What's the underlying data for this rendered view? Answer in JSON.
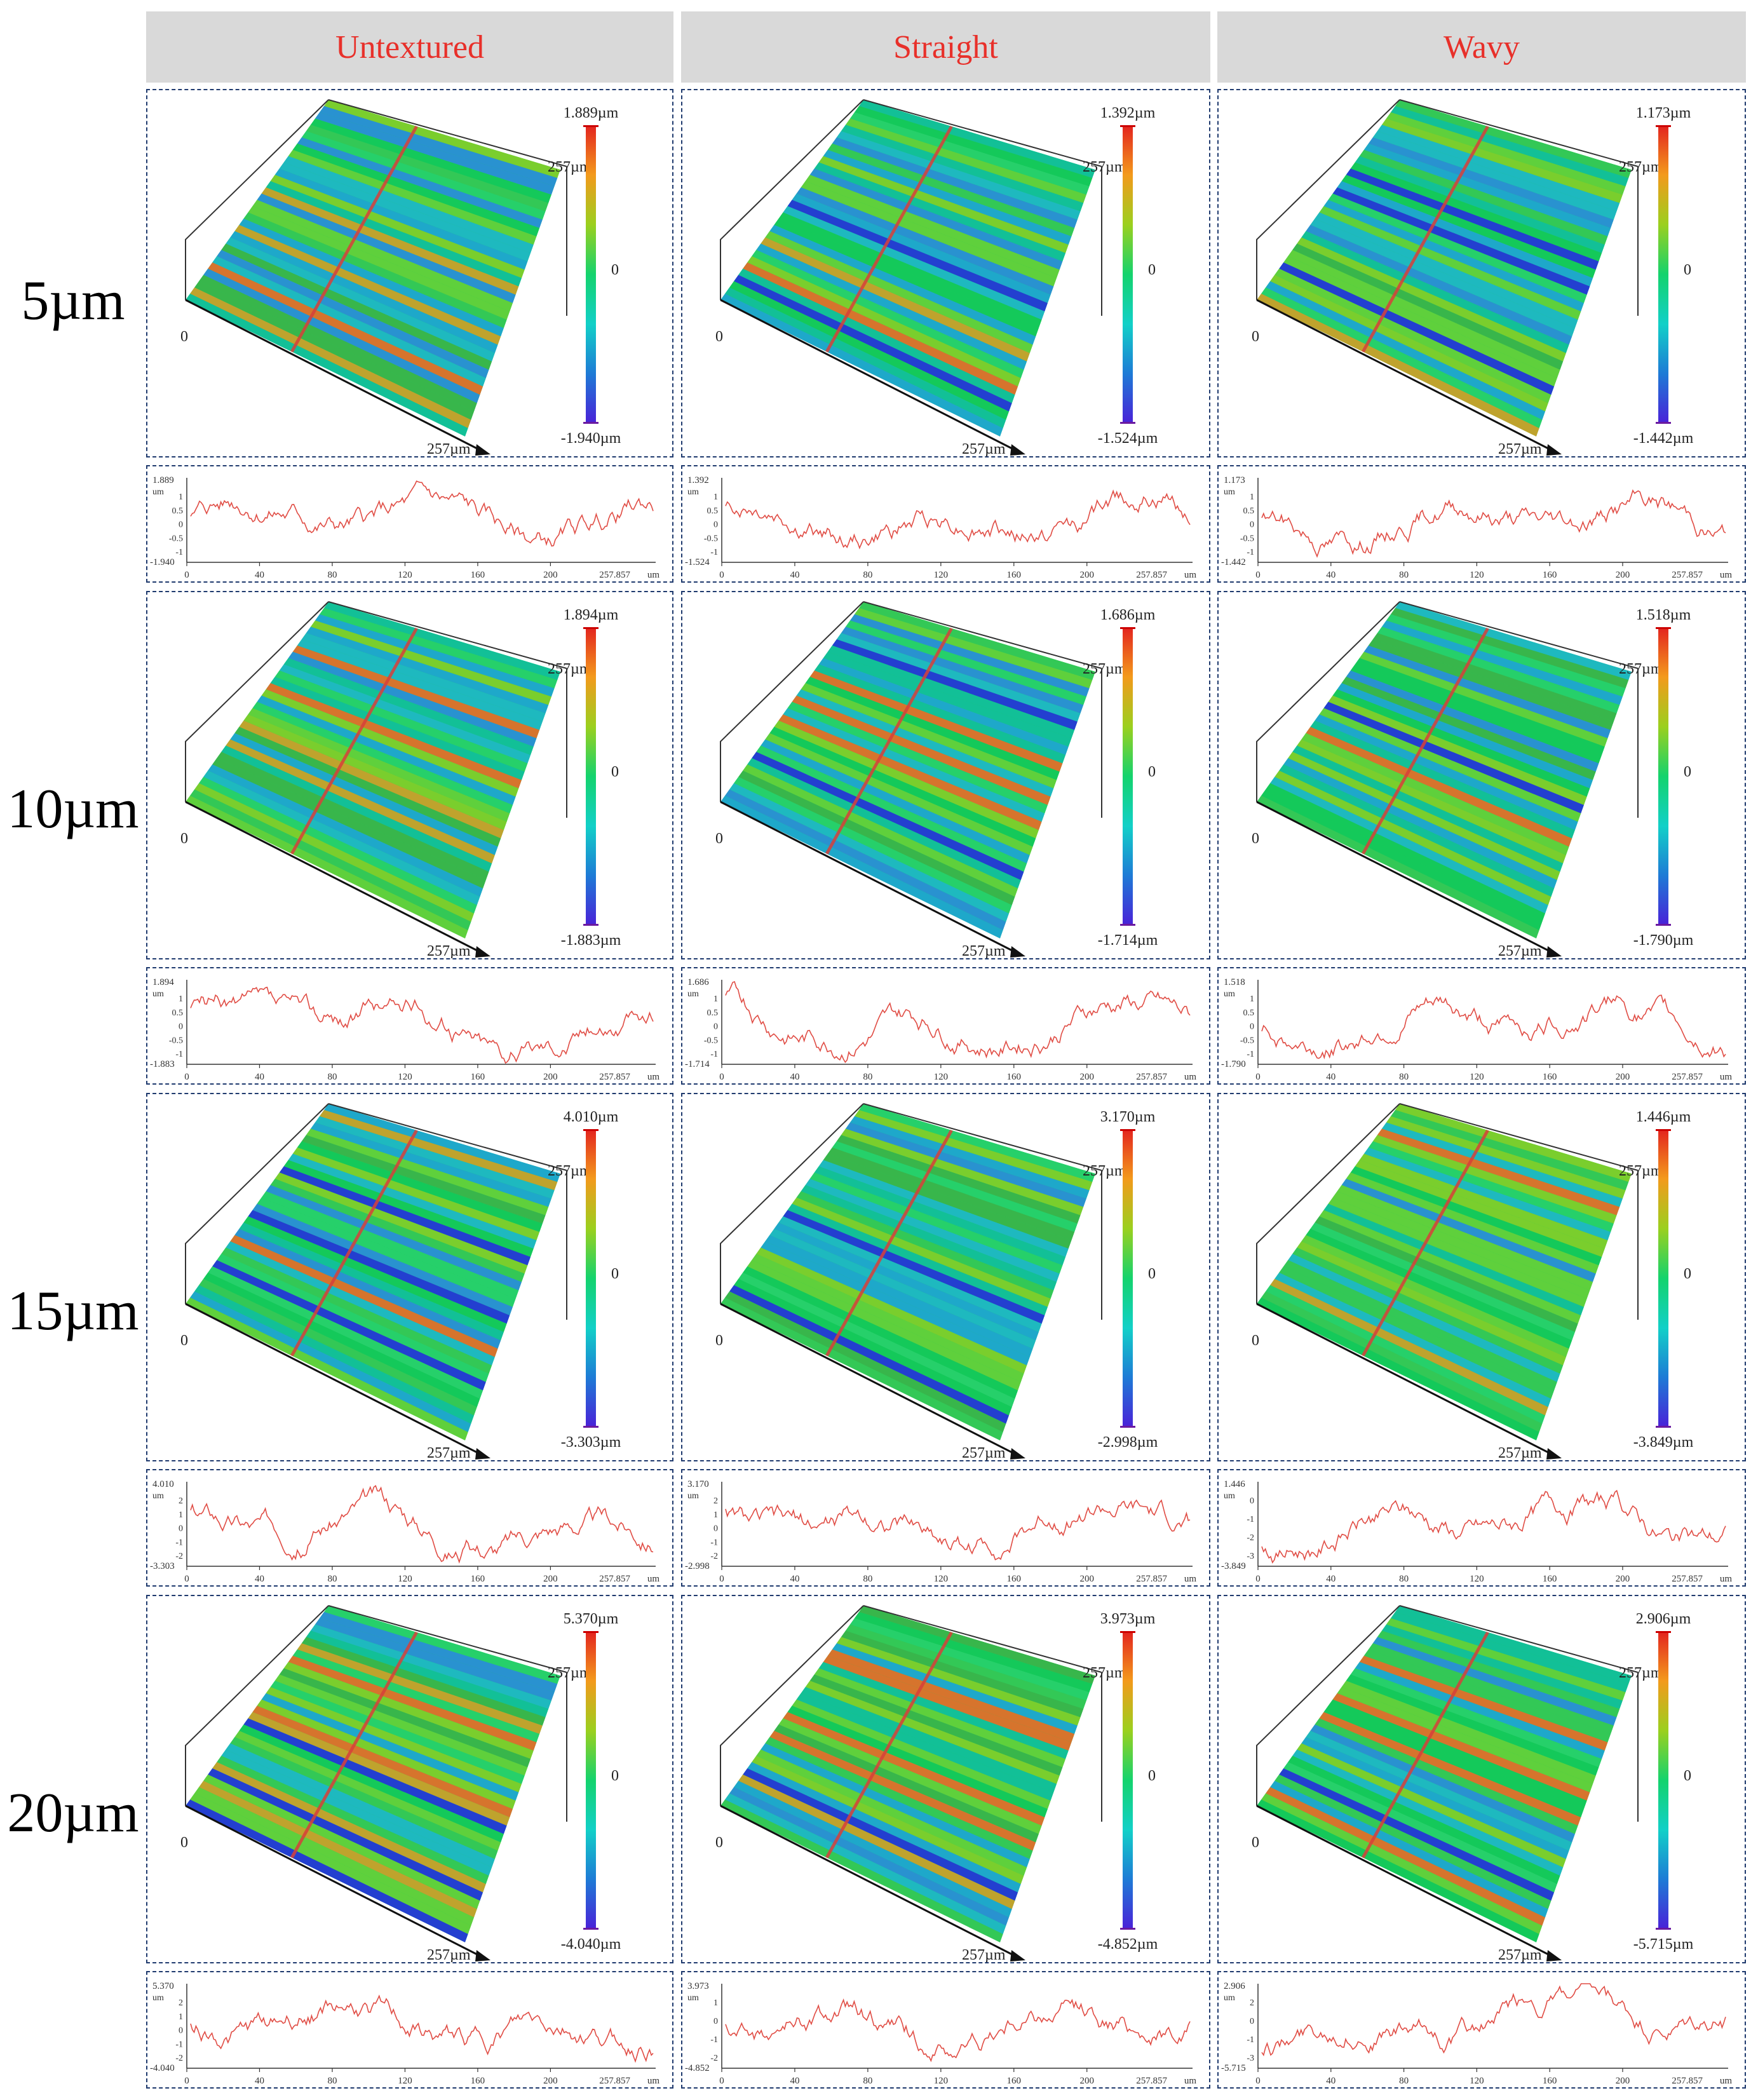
{
  "columns": [
    "Untextured",
    "Straight",
    "Wavy"
  ],
  "rows": [
    "5µm",
    "10µm",
    "15µm",
    "20µm"
  ],
  "axis": {
    "zero": "0",
    "side": "257µm",
    "profile_end": "257.857",
    "profile_unit": "um",
    "unit_short": "µm"
  },
  "profile_x_ticks": [
    "0",
    "40",
    "80",
    "120",
    "160",
    "200"
  ],
  "colorscale": [
    "#e3231f",
    "#f39a1c",
    "#9bd01e",
    "#14d36d",
    "#12d0c8",
    "#1e7ad6",
    "#4a20d8"
  ],
  "panels": [
    [
      {
        "max": "1.889µm",
        "min": "-1.940µm",
        "pmax": "1.889",
        "pmin": "-1.940",
        "pticks": [
          "1",
          "0.5",
          "0",
          "-0.5",
          "-1"
        ]
      },
      {
        "max": "1.392µm",
        "min": "-1.524µm",
        "pmax": "1.392",
        "pmin": "-1.524",
        "pticks": [
          "1",
          "0.5",
          "0",
          "-0.5",
          "-1"
        ]
      },
      {
        "max": "1.173µm",
        "min": "-1.442µm",
        "pmax": "1.173",
        "pmin": "-1.442",
        "pticks": [
          "1",
          "0.5",
          "0",
          "-0.5",
          "-1"
        ]
      }
    ],
    [
      {
        "max": "1.894µm",
        "min": "-1.883µm",
        "pmax": "1.894",
        "pmin": "-1.883",
        "pticks": [
          "1",
          "0.5",
          "0",
          "-0.5",
          "-1"
        ]
      },
      {
        "max": "1.686µm",
        "min": "-1.714µm",
        "pmax": "1.686",
        "pmin": "-1.714",
        "pticks": [
          "1",
          "0.5",
          "0",
          "-0.5",
          "-1"
        ]
      },
      {
        "max": "1.518µm",
        "min": "-1.790µm",
        "pmax": "1.518",
        "pmin": "-1.790",
        "pticks": [
          "1",
          "0.5",
          "0",
          "-0.5",
          "-1"
        ]
      }
    ],
    [
      {
        "max": "4.010µm",
        "min": "-3.303µm",
        "pmax": "4.010",
        "pmin": "-3.303",
        "pticks": [
          "2",
          "1",
          "0",
          "-1",
          "-2"
        ]
      },
      {
        "max": "3.170µm",
        "min": "-2.998µm",
        "pmax": "3.170",
        "pmin": "-2.998",
        "pticks": [
          "2",
          "1",
          "0",
          "-1",
          "-2"
        ]
      },
      {
        "max": "1.446µm",
        "min": "-3.849µm",
        "pmax": "1.446",
        "pmin": "-3.849",
        "pticks": [
          "0",
          "-1",
          "-2",
          "-3"
        ]
      }
    ],
    [
      {
        "max": "5.370µm",
        "min": "-4.040µm",
        "pmax": "5.370",
        "pmin": "-4.040",
        "pticks": [
          "2",
          "1",
          "0",
          "-1",
          "-2"
        ]
      },
      {
        "max": "3.973µm",
        "min": "-4.852µm",
        "pmax": "3.973",
        "pmin": "-4.852",
        "pticks": [
          "1",
          "0",
          "-1",
          "-2"
        ]
      },
      {
        "max": "2.906µm",
        "min": "-5.715µm",
        "pmax": "2.906",
        "pmin": "-5.715",
        "pticks": [
          "2",
          "0",
          "-1",
          "-3"
        ]
      }
    ]
  ]
}
